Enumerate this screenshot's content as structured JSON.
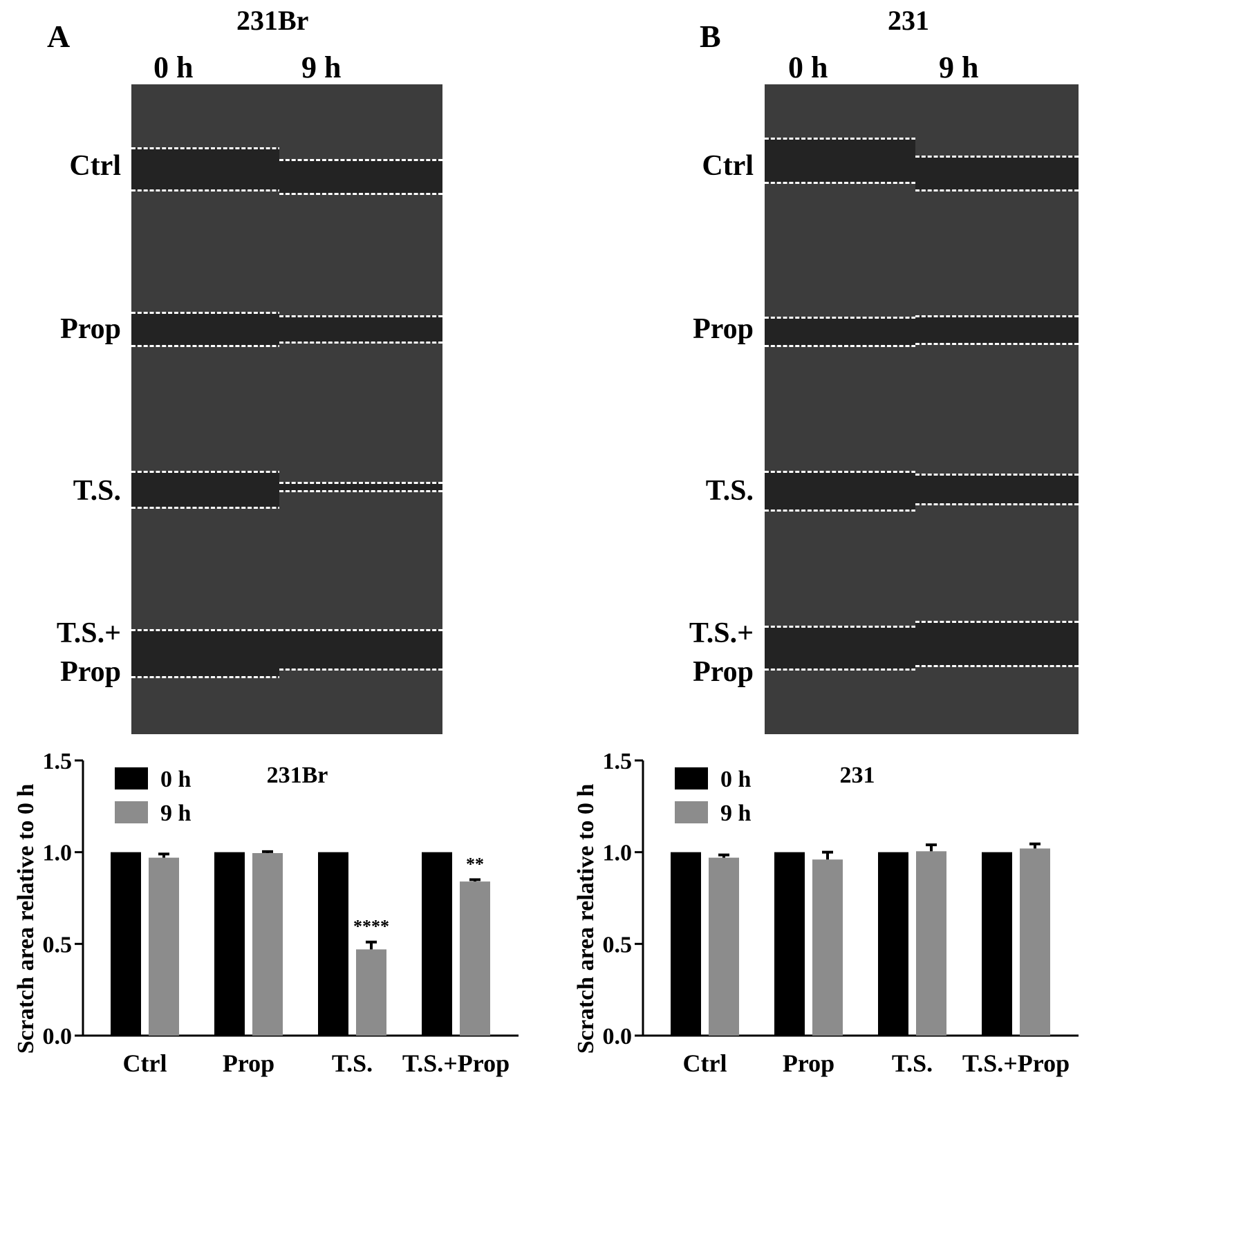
{
  "figure": {
    "panel_A": {
      "letter": "A",
      "cell_line": "231Br",
      "time_labels": [
        "0 h",
        "9 h"
      ],
      "rows": [
        {
          "label_lines": [
            "Ctrl"
          ],
          "gap_0h": [
            0.39,
            0.65
          ],
          "gap_9h": [
            0.46,
            0.67
          ]
        },
        {
          "label_lines": [
            "Prop"
          ],
          "gap_0h": [
            0.4,
            0.6
          ],
          "gap_9h": [
            0.42,
            0.58
          ]
        },
        {
          "label_lines": [
            "T.S."
          ],
          "gap_0h": [
            0.38,
            0.6
          ],
          "gap_9h": [
            0.45,
            0.5
          ]
        },
        {
          "label_lines": [
            "T.S.+",
            "Prop"
          ],
          "gap_0h": [
            0.36,
            0.65
          ],
          "gap_9h": [
            0.36,
            0.6
          ]
        }
      ]
    },
    "panel_B": {
      "letter": "B",
      "cell_line": "231",
      "time_labels": [
        "0 h",
        "9 h"
      ],
      "rows": [
        {
          "label_lines": [
            "Ctrl"
          ],
          "gap_0h": [
            0.33,
            0.6
          ],
          "gap_9h": [
            0.44,
            0.65
          ]
        },
        {
          "label_lines": [
            "Prop"
          ],
          "gap_0h": [
            0.43,
            0.6
          ],
          "gap_9h": [
            0.42,
            0.59
          ]
        },
        {
          "label_lines": [
            "T.S."
          ],
          "gap_0h": [
            0.38,
            0.62
          ],
          "gap_9h": [
            0.4,
            0.58
          ]
        },
        {
          "label_lines": [
            "T.S.+",
            "Prop"
          ],
          "gap_0h": [
            0.34,
            0.6
          ],
          "gap_9h": [
            0.31,
            0.58
          ]
        }
      ]
    }
  },
  "chart_data": [
    {
      "type": "bar",
      "title": "231Br",
      "xlabel": "",
      "ylabel": "Scratch area relative to 0 h",
      "ylim": [
        0,
        1.5
      ],
      "yticks": [
        "0.0",
        "0.5",
        "1.0",
        "1.5"
      ],
      "categories": [
        "Ctrl",
        "Prop",
        "T.S.",
        "T.S.+Prop"
      ],
      "series": [
        {
          "name": "0 h",
          "color": "#000000",
          "values": [
            1.0,
            1.0,
            1.0,
            1.0
          ],
          "errors": [
            0,
            0,
            0,
            0
          ]
        },
        {
          "name": "9 h",
          "color": "#8c8c8c",
          "values": [
            0.97,
            0.995,
            0.47,
            0.84
          ],
          "errors": [
            0.02,
            0.008,
            0.04,
            0.01
          ]
        }
      ],
      "annotations": [
        "",
        "",
        "****",
        "**"
      ],
      "legend_position": "top-left"
    },
    {
      "type": "bar",
      "title": "231",
      "xlabel": "",
      "ylabel": "Scratch area relative to 0 h",
      "ylim": [
        0,
        1.5
      ],
      "yticks": [
        "0.0",
        "0.5",
        "1.0",
        "1.5"
      ],
      "categories": [
        "Ctrl",
        "Prop",
        "T.S.",
        "T.S.+Prop"
      ],
      "series": [
        {
          "name": "0 h",
          "color": "#000000",
          "values": [
            1.0,
            1.0,
            1.0,
            1.0
          ],
          "errors": [
            0,
            0,
            0,
            0
          ]
        },
        {
          "name": "9 h",
          "color": "#8c8c8c",
          "values": [
            0.97,
            0.96,
            1.005,
            1.02
          ],
          "errors": [
            0.015,
            0.04,
            0.035,
            0.025
          ]
        }
      ],
      "annotations": [
        "",
        "",
        "",
        ""
      ],
      "legend_position": "top-left"
    }
  ]
}
